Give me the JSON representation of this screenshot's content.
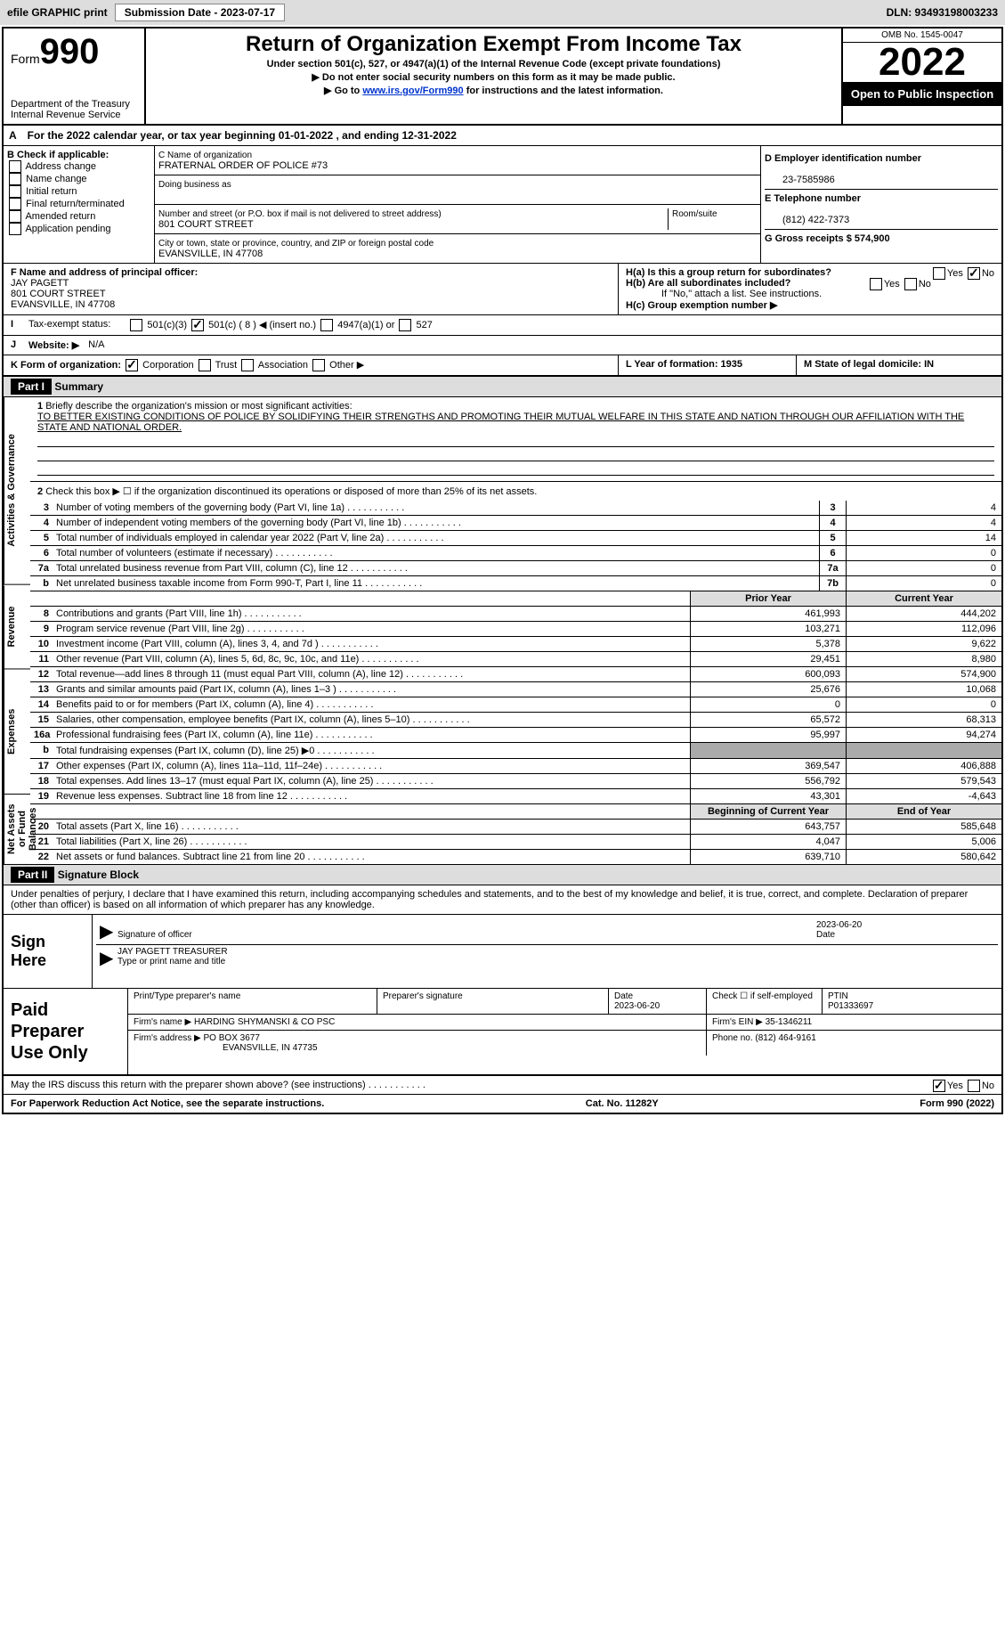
{
  "header": {
    "efile": "efile GRAPHIC print",
    "sub_date_label": "Submission Date - 2023-07-17",
    "dln": "DLN: 93493198003233"
  },
  "form": {
    "word": "Form",
    "number": "990",
    "title": "Return of Organization Exempt From Income Tax",
    "sub1": "Under section 501(c), 527, or 4947(a)(1) of the Internal Revenue Code (except private foundations)",
    "sub2": "▶ Do not enter social security numbers on this form as it may be made public.",
    "sub3_pre": "▶ Go to ",
    "sub3_link": "www.irs.gov/Form990",
    "sub3_post": " for instructions and the latest information.",
    "omb": "OMB No. 1545-0047",
    "year": "2022",
    "open": "Open to Public Inspection",
    "dept": "Department of the Treasury",
    "irs": "Internal Revenue Service"
  },
  "rowA": {
    "label": "A",
    "text": "For the 2022 calendar year, or tax year beginning 01-01-2022    , and ending 12-31-2022"
  },
  "sectionB": {
    "b_label": "B Check if applicable:",
    "items": [
      "Address change",
      "Name change",
      "Initial return",
      "Final return/terminated",
      "Amended return",
      "Application pending"
    ],
    "c_name_label": "C Name of organization",
    "c_name": "FRATERNAL ORDER OF POLICE #73",
    "dba_label": "Doing business as",
    "addr_label": "Number and street (or P.O. box if mail is not delivered to street address)",
    "room_label": "Room/suite",
    "addr": "801 COURT STREET",
    "city_label": "City or town, state or province, country, and ZIP or foreign postal code",
    "city": "EVANSVILLE, IN  47708",
    "d_ein_label": "D Employer identification number",
    "d_ein": "23-7585986",
    "e_phone_label": "E Telephone number",
    "e_phone": "(812) 422-7373",
    "g_gross_label": "G Gross receipts $ 574,900"
  },
  "sectionF": {
    "f_label": "F  Name and address of principal officer:",
    "officer": "JAY PAGETT",
    "addr1": "801 COURT STREET",
    "addr2": "EVANSVILLE, IN  47708",
    "h_a": "H(a)  Is this a group return for subordinates?",
    "h_b": "H(b)  Are all subordinates included?",
    "h_if_no": "If \"No,\" attach a list. See instructions.",
    "h_c": "H(c)  Group exemption number ▶",
    "yes": "Yes",
    "no": "No"
  },
  "status": {
    "i_label": "I",
    "tax_exempt": "Tax-exempt status:",
    "opts": [
      "501(c)(3)",
      "501(c) ( 8 ) ◀ (insert no.)",
      "4947(a)(1) or",
      "527"
    ]
  },
  "rowJK": {
    "j_label": "J",
    "website": "Website: ▶",
    "website_val": "N/A",
    "k_label": "K Form of organization:",
    "k_opts": [
      "Corporation",
      "Trust",
      "Association",
      "Other ▶"
    ],
    "l_label": "L Year of formation: 1935",
    "m_label": "M State of legal domicile: IN"
  },
  "part1": {
    "part": "Part I",
    "title": "Summary",
    "vert1": "Activities & Governance",
    "vert2": "Revenue",
    "vert3": "Expenses",
    "vert4": "Net Assets or Fund Balances",
    "q1": "Briefly describe the organization's mission or most significant activities:",
    "mission": "TO BETTER EXISTING CONDITIONS OF POLICE BY SOLIDIFYING THEIR STRENGTHS AND PROMOTING THEIR MUTUAL WELFARE IN THIS STATE AND NATION THROUGH OUR AFFILIATION WITH THE STATE AND NATIONAL ORDER.",
    "q2": "Check this box ▶ ☐  if the organization discontinued its operations or disposed of more than 25% of its net assets.",
    "rows_gov": [
      {
        "n": "3",
        "t": "Number of voting members of the governing body (Part VI, line 1a)",
        "box": "3",
        "v": "4"
      },
      {
        "n": "4",
        "t": "Number of independent voting members of the governing body (Part VI, line 1b)",
        "box": "4",
        "v": "4"
      },
      {
        "n": "5",
        "t": "Total number of individuals employed in calendar year 2022 (Part V, line 2a)",
        "box": "5",
        "v": "14"
      },
      {
        "n": "6",
        "t": "Total number of volunteers (estimate if necessary)",
        "box": "6",
        "v": "0"
      },
      {
        "n": "7a",
        "t": "Total unrelated business revenue from Part VIII, column (C), line 12",
        "box": "7a",
        "v": "0"
      },
      {
        "n": "b",
        "t": "Net unrelated business taxable income from Form 990-T, Part I, line 11",
        "box": "7b",
        "v": "0"
      }
    ],
    "prior_label": "Prior Year",
    "current_label": "Current Year",
    "rows_rev": [
      {
        "n": "8",
        "t": "Contributions and grants (Part VIII, line 1h)",
        "p": "461,993",
        "c": "444,202"
      },
      {
        "n": "9",
        "t": "Program service revenue (Part VIII, line 2g)",
        "p": "103,271",
        "c": "112,096"
      },
      {
        "n": "10",
        "t": "Investment income (Part VIII, column (A), lines 3, 4, and 7d )",
        "p": "5,378",
        "c": "9,622"
      },
      {
        "n": "11",
        "t": "Other revenue (Part VIII, column (A), lines 5, 6d, 8c, 9c, 10c, and 11e)",
        "p": "29,451",
        "c": "8,980"
      },
      {
        "n": "12",
        "t": "Total revenue—add lines 8 through 11 (must equal Part VIII, column (A), line 12)",
        "p": "600,093",
        "c": "574,900"
      }
    ],
    "rows_exp": [
      {
        "n": "13",
        "t": "Grants and similar amounts paid (Part IX, column (A), lines 1–3 )",
        "p": "25,676",
        "c": "10,068"
      },
      {
        "n": "14",
        "t": "Benefits paid to or for members (Part IX, column (A), line 4)",
        "p": "0",
        "c": "0"
      },
      {
        "n": "15",
        "t": "Salaries, other compensation, employee benefits (Part IX, column (A), lines 5–10)",
        "p": "65,572",
        "c": "68,313"
      },
      {
        "n": "16a",
        "t": "Professional fundraising fees (Part IX, column (A), line 11e)",
        "p": "95,997",
        "c": "94,274"
      },
      {
        "n": "b",
        "t": "Total fundraising expenses (Part IX, column (D), line 25) ▶0",
        "p": "",
        "c": "",
        "shaded": true
      },
      {
        "n": "17",
        "t": "Other expenses (Part IX, column (A), lines 11a–11d, 11f–24e)",
        "p": "369,547",
        "c": "406,888"
      },
      {
        "n": "18",
        "t": "Total expenses. Add lines 13–17 (must equal Part IX, column (A), line 25)",
        "p": "556,792",
        "c": "579,543"
      },
      {
        "n": "19",
        "t": "Revenue less expenses. Subtract line 18 from line 12",
        "p": "43,301",
        "c": "-4,643"
      }
    ],
    "beg_label": "Beginning of Current Year",
    "end_label": "End of Year",
    "rows_net": [
      {
        "n": "20",
        "t": "Total assets (Part X, line 16)",
        "p": "643,757",
        "c": "585,648"
      },
      {
        "n": "21",
        "t": "Total liabilities (Part X, line 26)",
        "p": "4,047",
        "c": "5,006"
      },
      {
        "n": "22",
        "t": "Net assets or fund balances. Subtract line 21 from line 20",
        "p": "639,710",
        "c": "580,642"
      }
    ]
  },
  "part2": {
    "part": "Part II",
    "title": "Signature Block",
    "penalty": "Under penalties of perjury, I declare that I have examined this return, including accompanying schedules and statements, and to the best of my knowledge and belief, it is true, correct, and complete. Declaration of preparer (other than officer) is based on all information of which preparer has any knowledge.",
    "sign_here": "Sign Here",
    "sig_date": "2023-06-20",
    "sig_label": "Signature of officer",
    "date_label": "Date",
    "name": "JAY PAGETT TREASURER",
    "name_label": "Type or print name and title"
  },
  "preparer": {
    "label": "Paid Preparer Use Only",
    "print_label": "Print/Type preparer's name",
    "sig_label": "Preparer's signature",
    "date_label": "Date",
    "date": "2023-06-20",
    "check_label": "Check ☐ if self-employed",
    "ptin_label": "PTIN",
    "ptin": "P01333697",
    "firm_label": "Firm's name    ▶",
    "firm": "HARDING SHYMANSKI & CO PSC",
    "ein_label": "Firm's EIN ▶ 35-1346211",
    "addr_label": "Firm's address ▶",
    "addr1": "PO BOX 3677",
    "addr2": "EVANSVILLE, IN  47735",
    "phone_label": "Phone no. (812) 464-9161"
  },
  "discuss": {
    "text": "May the IRS discuss this return with the preparer shown above? (see instructions)",
    "yes": "Yes",
    "no": "No"
  },
  "footer": {
    "left": "For Paperwork Reduction Act Notice, see the separate instructions.",
    "mid": "Cat. No. 11282Y",
    "right": "Form 990 (2022)"
  },
  "colors": {
    "header_bg": "#dddddd",
    "black": "#000000",
    "link": "#0033cc"
  }
}
